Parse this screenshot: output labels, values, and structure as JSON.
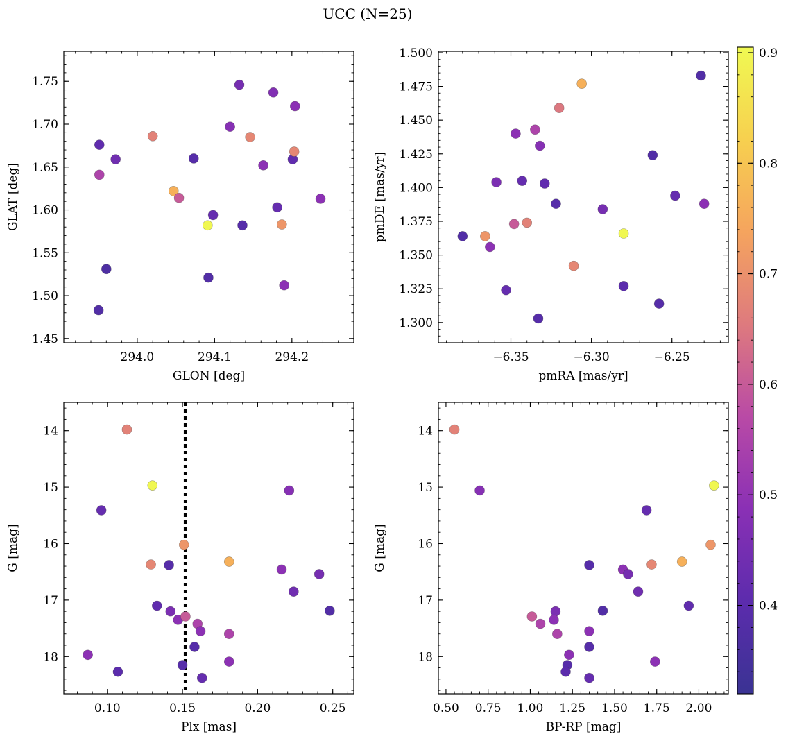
{
  "figure": {
    "title": "UCC (N=25)"
  },
  "colorbar": {
    "label": "",
    "range": [
      0.32,
      0.905
    ],
    "ticks": [
      0.4,
      0.5,
      0.6,
      0.7,
      0.8,
      0.9
    ],
    "tick_labels": [
      "0.4",
      "0.5",
      "0.6",
      "0.7",
      "0.8",
      "0.9"
    ],
    "colormap": "plasma",
    "colormap_stops": [
      "#3a3393",
      "#5c2cad",
      "#8a30b5",
      "#b94aa6",
      "#de7a7e",
      "#f5a45e",
      "#f7d04f",
      "#f0f952"
    ]
  },
  "chart_data": [
    {
      "type": "scatter",
      "name": "glon-glat",
      "xlabel": "GLON [deg]",
      "ylabel": "GLAT [deg]",
      "xlim": [
        293.905,
        294.28
      ],
      "ylim": [
        1.445,
        1.785
      ],
      "x_ticks": [
        294.0,
        294.1,
        294.2
      ],
      "x_tick_labels": [
        "294.0",
        "294.1",
        "294.2"
      ],
      "y_ticks": [
        1.45,
        1.5,
        1.55,
        1.6,
        1.65,
        1.7,
        1.75
      ],
      "y_tick_labels": [
        "1.45",
        "1.50",
        "1.55",
        "1.60",
        "1.65",
        "1.70",
        "1.75"
      ],
      "y_inverted": false,
      "vline": null,
      "points": [
        {
          "x": 293.951,
          "y": 1.676,
          "c": 0.41
        },
        {
          "x": 293.972,
          "y": 1.659,
          "c": 0.44
        },
        {
          "x": 293.951,
          "y": 1.641,
          "c": 0.55
        },
        {
          "x": 293.96,
          "y": 1.531,
          "c": 0.37
        },
        {
          "x": 293.95,
          "y": 1.483,
          "c": 0.38
        },
        {
          "x": 294.02,
          "y": 1.686,
          "c": 0.67
        },
        {
          "x": 294.047,
          "y": 1.622,
          "c": 0.76
        },
        {
          "x": 294.054,
          "y": 1.614,
          "c": 0.6
        },
        {
          "x": 294.073,
          "y": 1.66,
          "c": 0.39
        },
        {
          "x": 294.091,
          "y": 1.582,
          "c": 0.9
        },
        {
          "x": 294.098,
          "y": 1.594,
          "c": 0.42
        },
        {
          "x": 294.092,
          "y": 1.521,
          "c": 0.38
        },
        {
          "x": 294.12,
          "y": 1.697,
          "c": 0.48
        },
        {
          "x": 294.132,
          "y": 1.746,
          "c": 0.45
        },
        {
          "x": 294.136,
          "y": 1.582,
          "c": 0.39
        },
        {
          "x": 294.146,
          "y": 1.685,
          "c": 0.68
        },
        {
          "x": 294.163,
          "y": 1.652,
          "c": 0.49
        },
        {
          "x": 294.176,
          "y": 1.737,
          "c": 0.47
        },
        {
          "x": 294.181,
          "y": 1.603,
          "c": 0.42
        },
        {
          "x": 294.187,
          "y": 1.583,
          "c": 0.71
        },
        {
          "x": 294.19,
          "y": 1.512,
          "c": 0.49
        },
        {
          "x": 294.201,
          "y": 1.659,
          "c": 0.41
        },
        {
          "x": 294.203,
          "y": 1.668,
          "c": 0.68
        },
        {
          "x": 294.204,
          "y": 1.721,
          "c": 0.49
        },
        {
          "x": 294.237,
          "y": 1.613,
          "c": 0.49
        }
      ]
    },
    {
      "type": "scatter",
      "name": "pmra-pmde",
      "xlabel": "pmRA [mas/yr]",
      "ylabel": "pmDE [mas/yr]",
      "xlim": [
        -6.395,
        -6.215
      ],
      "ylim": [
        1.285,
        1.501
      ],
      "x_ticks": [
        -6.35,
        -6.3,
        -6.25
      ],
      "x_tick_labels": [
        "−6.35",
        "−6.30",
        "−6.25"
      ],
      "y_ticks": [
        1.3,
        1.325,
        1.35,
        1.375,
        1.4,
        1.425,
        1.45,
        1.475,
        1.5
      ],
      "y_tick_labels": [
        "1.300",
        "1.325",
        "1.350",
        "1.375",
        "1.400",
        "1.425",
        "1.450",
        "1.475",
        "1.500"
      ],
      "y_inverted": false,
      "vline": null,
      "points": [
        {
          "x": -6.38,
          "y": 1.364,
          "c": 0.38
        },
        {
          "x": -6.366,
          "y": 1.364,
          "c": 0.71
        },
        {
          "x": -6.363,
          "y": 1.356,
          "c": 0.49
        },
        {
          "x": -6.359,
          "y": 1.404,
          "c": 0.46
        },
        {
          "x": -6.353,
          "y": 1.324,
          "c": 0.42
        },
        {
          "x": -6.348,
          "y": 1.373,
          "c": 0.6
        },
        {
          "x": -6.347,
          "y": 1.44,
          "c": 0.49
        },
        {
          "x": -6.343,
          "y": 1.405,
          "c": 0.42
        },
        {
          "x": -6.34,
          "y": 1.374,
          "c": 0.67
        },
        {
          "x": -6.335,
          "y": 1.443,
          "c": 0.55
        },
        {
          "x": -6.332,
          "y": 1.431,
          "c": 0.48
        },
        {
          "x": -6.333,
          "y": 1.303,
          "c": 0.39
        },
        {
          "x": -6.329,
          "y": 1.403,
          "c": 0.41
        },
        {
          "x": -6.322,
          "y": 1.388,
          "c": 0.39
        },
        {
          "x": -6.32,
          "y": 1.459,
          "c": 0.65
        },
        {
          "x": -6.311,
          "y": 1.342,
          "c": 0.68
        },
        {
          "x": -6.306,
          "y": 1.477,
          "c": 0.76
        },
        {
          "x": -6.293,
          "y": 1.384,
          "c": 0.45
        },
        {
          "x": -6.28,
          "y": 1.366,
          "c": 0.9
        },
        {
          "x": -6.28,
          "y": 1.327,
          "c": 0.4
        },
        {
          "x": -6.262,
          "y": 1.424,
          "c": 0.38
        },
        {
          "x": -6.258,
          "y": 1.314,
          "c": 0.39
        },
        {
          "x": -6.248,
          "y": 1.394,
          "c": 0.42
        },
        {
          "x": -6.232,
          "y": 1.483,
          "c": 0.38
        },
        {
          "x": -6.23,
          "y": 1.388,
          "c": 0.49
        }
      ]
    },
    {
      "type": "scatter",
      "name": "plx-g",
      "xlabel": "Plx [mas]",
      "ylabel": "G [mag]",
      "xlim": [
        0.071,
        0.264
      ],
      "ylim": [
        18.66,
        13.5
      ],
      "x_ticks": [
        0.1,
        0.15,
        0.2,
        0.25
      ],
      "x_tick_labels": [
        "0.10",
        "0.15",
        "0.20",
        "0.25"
      ],
      "y_ticks": [
        14,
        15,
        16,
        17,
        18
      ],
      "y_tick_labels": [
        "14",
        "15",
        "16",
        "17",
        "18"
      ],
      "y_inverted": true,
      "vline": 0.152,
      "points": [
        {
          "x": 0.113,
          "y": 13.98,
          "c": 0.67
        },
        {
          "x": 0.13,
          "y": 14.97,
          "c": 0.9
        },
        {
          "x": 0.096,
          "y": 15.41,
          "c": 0.42
        },
        {
          "x": 0.151,
          "y": 16.02,
          "c": 0.71
        },
        {
          "x": 0.129,
          "y": 16.37,
          "c": 0.68
        },
        {
          "x": 0.141,
          "y": 16.38,
          "c": 0.39
        },
        {
          "x": 0.181,
          "y": 16.32,
          "c": 0.76
        },
        {
          "x": 0.221,
          "y": 15.06,
          "c": 0.48
        },
        {
          "x": 0.216,
          "y": 16.46,
          "c": 0.49
        },
        {
          "x": 0.241,
          "y": 16.54,
          "c": 0.45
        },
        {
          "x": 0.224,
          "y": 16.85,
          "c": 0.44
        },
        {
          "x": 0.248,
          "y": 17.19,
          "c": 0.38
        },
        {
          "x": 0.133,
          "y": 17.1,
          "c": 0.41
        },
        {
          "x": 0.142,
          "y": 17.2,
          "c": 0.46
        },
        {
          "x": 0.147,
          "y": 17.35,
          "c": 0.49
        },
        {
          "x": 0.152,
          "y": 17.29,
          "c": 0.6
        },
        {
          "x": 0.16,
          "y": 17.42,
          "c": 0.55
        },
        {
          "x": 0.162,
          "y": 17.55,
          "c": 0.49
        },
        {
          "x": 0.181,
          "y": 17.6,
          "c": 0.55
        },
        {
          "x": 0.158,
          "y": 17.83,
          "c": 0.39
        },
        {
          "x": 0.087,
          "y": 17.97,
          "c": 0.49
        },
        {
          "x": 0.15,
          "y": 18.15,
          "c": 0.39
        },
        {
          "x": 0.181,
          "y": 18.09,
          "c": 0.49
        },
        {
          "x": 0.107,
          "y": 18.27,
          "c": 0.4
        },
        {
          "x": 0.163,
          "y": 18.38,
          "c": 0.42
        }
      ]
    },
    {
      "type": "scatter",
      "name": "bprp-g",
      "xlabel": "BP-RP [mag]",
      "ylabel": "G [mag]",
      "xlim": [
        0.455,
        2.175
      ],
      "ylim": [
        18.66,
        13.5
      ],
      "x_ticks": [
        0.5,
        0.75,
        1.0,
        1.25,
        1.5,
        1.75,
        2.0
      ],
      "x_tick_labels": [
        "0.50",
        "0.75",
        "1.00",
        "1.25",
        "1.50",
        "1.75",
        "2.00"
      ],
      "y_ticks": [
        14,
        15,
        16,
        17,
        18
      ],
      "y_tick_labels": [
        "14",
        "15",
        "16",
        "17",
        "18"
      ],
      "y_inverted": true,
      "vline": null,
      "points": [
        {
          "x": 0.55,
          "y": 13.98,
          "c": 0.67
        },
        {
          "x": 0.7,
          "y": 15.06,
          "c": 0.48
        },
        {
          "x": 2.09,
          "y": 14.97,
          "c": 0.9
        },
        {
          "x": 1.69,
          "y": 15.41,
          "c": 0.42
        },
        {
          "x": 2.07,
          "y": 16.02,
          "c": 0.71
        },
        {
          "x": 1.9,
          "y": 16.32,
          "c": 0.76
        },
        {
          "x": 1.72,
          "y": 16.37,
          "c": 0.68
        },
        {
          "x": 1.35,
          "y": 16.38,
          "c": 0.39
        },
        {
          "x": 1.55,
          "y": 16.46,
          "c": 0.49
        },
        {
          "x": 1.58,
          "y": 16.54,
          "c": 0.45
        },
        {
          "x": 1.64,
          "y": 16.85,
          "c": 0.44
        },
        {
          "x": 1.94,
          "y": 17.1,
          "c": 0.41
        },
        {
          "x": 1.43,
          "y": 17.19,
          "c": 0.38
        },
        {
          "x": 1.15,
          "y": 17.2,
          "c": 0.46
        },
        {
          "x": 1.01,
          "y": 17.29,
          "c": 0.6
        },
        {
          "x": 1.14,
          "y": 17.35,
          "c": 0.49
        },
        {
          "x": 1.06,
          "y": 17.42,
          "c": 0.55
        },
        {
          "x": 1.35,
          "y": 17.55,
          "c": 0.49
        },
        {
          "x": 1.16,
          "y": 17.6,
          "c": 0.55
        },
        {
          "x": 1.35,
          "y": 17.83,
          "c": 0.39
        },
        {
          "x": 1.23,
          "y": 17.97,
          "c": 0.49
        },
        {
          "x": 1.74,
          "y": 18.09,
          "c": 0.49
        },
        {
          "x": 1.22,
          "y": 18.15,
          "c": 0.39
        },
        {
          "x": 1.21,
          "y": 18.27,
          "c": 0.4
        },
        {
          "x": 1.35,
          "y": 18.38,
          "c": 0.42
        }
      ]
    }
  ]
}
